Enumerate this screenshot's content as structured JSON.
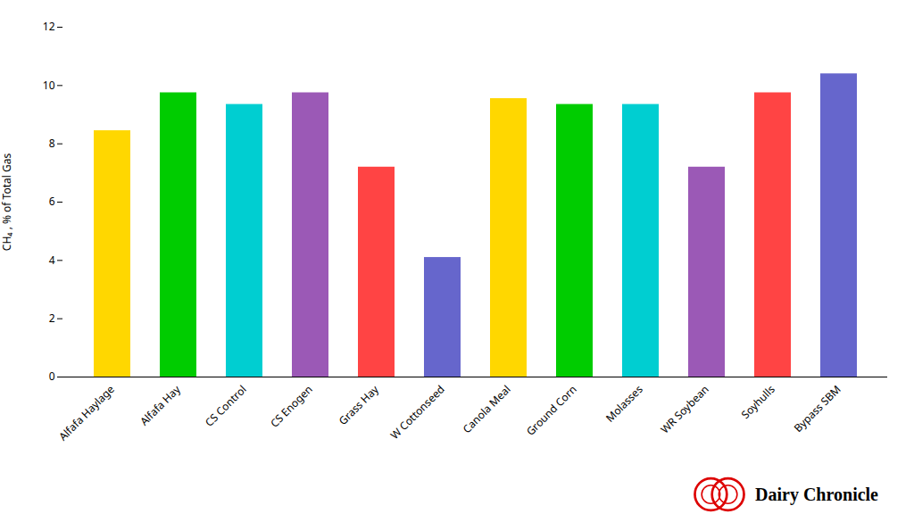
{
  "chart_data": {
    "type": "bar",
    "categories": [
      "Alfafa Haylage",
      "Alfafa Hay",
      "CS Control",
      "CS Enogen",
      "Grass Hay",
      "W Cottonseed",
      "Canola Meal",
      "Ground Corn",
      "Molasses",
      "WR Soybean",
      "Soyhulls",
      "Bypass SBM"
    ],
    "values": [
      8.45,
      9.75,
      9.35,
      9.75,
      7.2,
      4.1,
      9.55,
      9.35,
      9.35,
      7.2,
      9.75,
      10.4
    ],
    "colors": [
      "#FFD700",
      "#00CC00",
      "#00CED1",
      "#9B59B6",
      "#FF4444",
      "#6666CC",
      "#FFD700",
      "#00CC00",
      "#00CED1",
      "#9B59B6",
      "#FF4444",
      "#6666CC"
    ],
    "ylabel": "CH₄ , % of Total Gas",
    "ylim": [
      0,
      12
    ],
    "yticks": [
      0,
      2,
      4,
      6,
      8,
      10,
      12
    ],
    "grid": false,
    "annotations": [
      "Dairy Chronicle"
    ]
  }
}
